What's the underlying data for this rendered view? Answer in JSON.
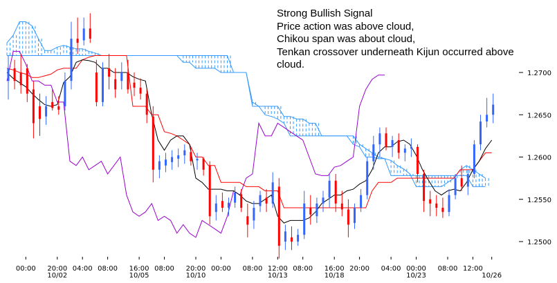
{
  "chart_data": {
    "type": "candlestick",
    "title": "",
    "xlabel": "",
    "ylabel": "",
    "ylim": [
      1.2478,
      1.2775
    ],
    "grid": false,
    "legend": "none",
    "annotation": [
      "Strong Bullish Signal",
      "Price action was above cloud,",
      "Chikou span was about cloud,",
      "Tenkan crossover underneath Kijun occurred above",
      "cloud."
    ],
    "y_ticks": [
      {
        "value": 1.27,
        "label": "1.2700"
      },
      {
        "value": 1.265,
        "label": "1.2650"
      },
      {
        "value": 1.26,
        "label": "1.2600"
      },
      {
        "value": 1.255,
        "label": "1.2550"
      },
      {
        "value": 1.25,
        "label": "1.2500"
      }
    ],
    "x_ticks": [
      {
        "i": 3,
        "time": "00:00",
        "date": ""
      },
      {
        "i": 8,
        "time": "20:00",
        "date": "10/02"
      },
      {
        "i": 12,
        "time": "04:00",
        "date": ""
      },
      {
        "i": 16,
        "time": "08:00",
        "date": ""
      },
      {
        "i": 21,
        "time": "16:00",
        "date": "10/05"
      },
      {
        "i": 25,
        "time": "08:00",
        "date": ""
      },
      {
        "i": 30,
        "time": "20:00",
        "date": "10/10"
      },
      {
        "i": 34,
        "time": "00:00",
        "date": ""
      },
      {
        "i": 39,
        "time": "08:00",
        "date": ""
      },
      {
        "i": 43,
        "time": "12:00",
        "date": "10/13"
      },
      {
        "i": 47,
        "time": "08:00",
        "date": ""
      },
      {
        "i": 52,
        "time": "16:00",
        "date": "10/18"
      },
      {
        "i": 56,
        "time": "20:00",
        "date": ""
      },
      {
        "i": 61,
        "time": "04:00",
        "date": ""
      },
      {
        "i": 65,
        "time": "00:00",
        "date": "10/23"
      },
      {
        "i": 70,
        "time": "08:00",
        "date": ""
      },
      {
        "i": 74,
        "time": "12:00",
        "date": ""
      },
      {
        "i": 77,
        "time": "",
        "date": "10/26"
      }
    ],
    "candles": [
      {
        "o": 1.269,
        "h": 1.272,
        "l": 1.2668,
        "c": 1.2705
      },
      {
        "o": 1.2705,
        "h": 1.2715,
        "l": 1.268,
        "c": 1.269
      },
      {
        "o": 1.27,
        "h": 1.2722,
        "l": 1.2675,
        "c": 1.2685
      },
      {
        "o": 1.2705,
        "h": 1.271,
        "l": 1.2665,
        "c": 1.2675
      },
      {
        "o": 1.268,
        "h": 1.269,
        "l": 1.2622,
        "c": 1.264
      },
      {
        "o": 1.266,
        "h": 1.2675,
        "l": 1.2625,
        "c": 1.2645
      },
      {
        "o": 1.2648,
        "h": 1.2672,
        "l": 1.2638,
        "c": 1.266
      },
      {
        "o": 1.2665,
        "h": 1.268,
        "l": 1.2655,
        "c": 1.2658
      },
      {
        "o": 1.266,
        "h": 1.2672,
        "l": 1.265,
        "c": 1.2656
      },
      {
        "o": 1.266,
        "h": 1.27,
        "l": 1.2655,
        "c": 1.269
      },
      {
        "o": 1.269,
        "h": 1.276,
        "l": 1.268,
        "c": 1.274
      },
      {
        "o": 1.274,
        "h": 1.2765,
        "l": 1.2722,
        "c": 1.2735
      },
      {
        "o": 1.2738,
        "h": 1.2765,
        "l": 1.2732,
        "c": 1.2752
      },
      {
        "o": 1.2752,
        "h": 1.277,
        "l": 1.2735,
        "c": 1.274
      },
      {
        "o": 1.27,
        "h": 1.2715,
        "l": 1.266,
        "c": 1.2665
      },
      {
        "o": 1.2665,
        "h": 1.2712,
        "l": 1.266,
        "c": 1.2705
      },
      {
        "o": 1.2705,
        "h": 1.2722,
        "l": 1.268,
        "c": 1.2695
      },
      {
        "o": 1.2692,
        "h": 1.2705,
        "l": 1.267,
        "c": 1.268
      },
      {
        "o": 1.269,
        "h": 1.2712,
        "l": 1.268,
        "c": 1.27
      },
      {
        "o": 1.27,
        "h": 1.2715,
        "l": 1.2675,
        "c": 1.268
      },
      {
        "o": 1.2688,
        "h": 1.27,
        "l": 1.2672,
        "c": 1.2682
      },
      {
        "o": 1.2682,
        "h": 1.2693,
        "l": 1.2668,
        "c": 1.2675
      },
      {
        "o": 1.2675,
        "h": 1.268,
        "l": 1.264,
        "c": 1.265
      },
      {
        "o": 1.2648,
        "h": 1.266,
        "l": 1.257,
        "c": 1.2585
      },
      {
        "o": 1.2585,
        "h": 1.2602,
        "l": 1.2575,
        "c": 1.2595
      },
      {
        "o": 1.259,
        "h": 1.2605,
        "l": 1.2582,
        "c": 1.2597
      },
      {
        "o": 1.2594,
        "h": 1.2608,
        "l": 1.2585,
        "c": 1.26
      },
      {
        "o": 1.2598,
        "h": 1.261,
        "l": 1.2588,
        "c": 1.2602
      },
      {
        "o": 1.2602,
        "h": 1.2615,
        "l": 1.2592,
        "c": 1.2608
      },
      {
        "o": 1.2606,
        "h": 1.2612,
        "l": 1.259,
        "c": 1.2595
      },
      {
        "o": 1.2596,
        "h": 1.2605,
        "l": 1.2585,
        "c": 1.2598
      },
      {
        "o": 1.2598,
        "h": 1.26,
        "l": 1.2578,
        "c": 1.2585
      },
      {
        "o": 1.259,
        "h": 1.2595,
        "l": 1.252,
        "c": 1.253
      },
      {
        "o": 1.2535,
        "h": 1.2555,
        "l": 1.2525,
        "c": 1.2545
      },
      {
        "o": 1.2548,
        "h": 1.2558,
        "l": 1.2535,
        "c": 1.254
      },
      {
        "o": 1.254,
        "h": 1.2552,
        "l": 1.253,
        "c": 1.2546
      },
      {
        "o": 1.2546,
        "h": 1.2565,
        "l": 1.254,
        "c": 1.2558
      },
      {
        "o": 1.2556,
        "h": 1.2562,
        "l": 1.2535,
        "c": 1.254
      },
      {
        "o": 1.253,
        "h": 1.2545,
        "l": 1.2505,
        "c": 1.252
      },
      {
        "o": 1.2525,
        "h": 1.2548,
        "l": 1.2515,
        "c": 1.254
      },
      {
        "o": 1.2542,
        "h": 1.256,
        "l": 1.2535,
        "c": 1.2555
      },
      {
        "o": 1.2552,
        "h": 1.2562,
        "l": 1.2535,
        "c": 1.2545
      },
      {
        "o": 1.2545,
        "h": 1.2582,
        "l": 1.254,
        "c": 1.257
      },
      {
        "o": 1.2565,
        "h": 1.2575,
        "l": 1.248,
        "c": 1.2495
      },
      {
        "o": 1.25,
        "h": 1.252,
        "l": 1.249,
        "c": 1.2512
      },
      {
        "o": 1.2505,
        "h": 1.2518,
        "l": 1.249,
        "c": 1.25
      },
      {
        "o": 1.25,
        "h": 1.2515,
        "l": 1.2495,
        "c": 1.2508
      },
      {
        "o": 1.2508,
        "h": 1.256,
        "l": 1.2503,
        "c": 1.2545
      },
      {
        "o": 1.254,
        "h": 1.2555,
        "l": 1.252,
        "c": 1.2532
      },
      {
        "o": 1.253,
        "h": 1.2552,
        "l": 1.2522,
        "c": 1.2545
      },
      {
        "o": 1.2545,
        "h": 1.256,
        "l": 1.2535,
        "c": 1.2552
      },
      {
        "o": 1.2552,
        "h": 1.258,
        "l": 1.254,
        "c": 1.2572
      },
      {
        "o": 1.2572,
        "h": 1.258,
        "l": 1.2535,
        "c": 1.2545
      },
      {
        "o": 1.2545,
        "h": 1.256,
        "l": 1.253,
        "c": 1.2538
      },
      {
        "o": 1.2538,
        "h": 1.255,
        "l": 1.2505,
        "c": 1.252
      },
      {
        "o": 1.2522,
        "h": 1.2545,
        "l": 1.2515,
        "c": 1.254
      },
      {
        "o": 1.254,
        "h": 1.2562,
        "l": 1.2535,
        "c": 1.2555
      },
      {
        "o": 1.2555,
        "h": 1.26,
        "l": 1.255,
        "c": 1.2595
      },
      {
        "o": 1.2595,
        "h": 1.2625,
        "l": 1.2585,
        "c": 1.2615
      },
      {
        "o": 1.2615,
        "h": 1.2635,
        "l": 1.26,
        "c": 1.2628
      },
      {
        "o": 1.2628,
        "h": 1.2635,
        "l": 1.2608,
        "c": 1.2612
      },
      {
        "o": 1.2612,
        "h": 1.2625,
        "l": 1.26,
        "c": 1.262
      },
      {
        "o": 1.262,
        "h": 1.2628,
        "l": 1.2598,
        "c": 1.2605
      },
      {
        "o": 1.2605,
        "h": 1.2615,
        "l": 1.2595,
        "c": 1.261
      },
      {
        "o": 1.261,
        "h": 1.2622,
        "l": 1.26,
        "c": 1.2612
      },
      {
        "o": 1.2612,
        "h": 1.2615,
        "l": 1.257,
        "c": 1.258
      },
      {
        "o": 1.258,
        "h": 1.2585,
        "l": 1.2535,
        "c": 1.2548
      },
      {
        "o": 1.255,
        "h": 1.256,
        "l": 1.253,
        "c": 1.2545
      },
      {
        "o": 1.2545,
        "h": 1.2555,
        "l": 1.253,
        "c": 1.254
      },
      {
        "o": 1.254,
        "h": 1.2552,
        "l": 1.2528,
        "c": 1.2535
      },
      {
        "o": 1.2535,
        "h": 1.2562,
        "l": 1.253,
        "c": 1.2555
      },
      {
        "o": 1.2555,
        "h": 1.258,
        "l": 1.255,
        "c": 1.2575
      },
      {
        "o": 1.2575,
        "h": 1.259,
        "l": 1.256,
        "c": 1.2565
      },
      {
        "o": 1.2565,
        "h": 1.2585,
        "l": 1.2555,
        "c": 1.258
      },
      {
        "o": 1.258,
        "h": 1.262,
        "l": 1.2575,
        "c": 1.2615
      },
      {
        "o": 1.2615,
        "h": 1.265,
        "l": 1.2608,
        "c": 1.2642
      },
      {
        "o": 1.2642,
        "h": 1.267,
        "l": 1.2635,
        "c": 1.265
      },
      {
        "o": 1.265,
        "h": 1.2675,
        "l": 1.264,
        "c": 1.2662
      }
    ],
    "series": [
      {
        "role": "tenkan",
        "color": "#000000",
        "values": [
          1.27,
          1.2693,
          1.2688,
          1.2683,
          1.2675,
          1.2668,
          1.2662,
          1.266,
          1.2662,
          1.2688,
          1.2695,
          1.2712,
          1.2715,
          1.2714,
          1.2712,
          1.2705,
          1.2705,
          1.27,
          1.27,
          1.27,
          1.2695,
          1.2692,
          1.269,
          1.265,
          1.262,
          1.2608,
          1.262,
          1.2625,
          1.2625,
          1.2615,
          1.2575,
          1.257,
          1.2562,
          1.2562,
          1.2562,
          1.256,
          1.256,
          1.2555,
          1.2548,
          1.2545,
          1.2545,
          1.255,
          1.2555,
          1.253,
          1.2522,
          1.2525,
          1.2525,
          1.2525,
          1.2528,
          1.2535,
          1.2545,
          1.255,
          1.2555,
          1.2555,
          1.256,
          1.2562,
          1.2568,
          1.2572,
          1.2585,
          1.2605,
          1.2612,
          1.2612,
          1.2618,
          1.262,
          1.2615,
          1.2602,
          1.2585,
          1.2572,
          1.256,
          1.2555,
          1.256,
          1.2562,
          1.256,
          1.257,
          1.2585,
          1.2595,
          1.261,
          1.262
        ]
      },
      {
        "role": "kijun",
        "color": "#ff0000",
        "values": [
          1.2705,
          1.2703,
          1.27,
          1.2698,
          1.2694,
          1.2694,
          1.2696,
          1.2698,
          1.2703,
          1.2705,
          1.2705,
          1.2705,
          1.2715,
          1.2718,
          1.272,
          1.272,
          1.272,
          1.272,
          1.272,
          1.272,
          1.266,
          1.266,
          1.266,
          1.265,
          1.265,
          1.263,
          1.2628,
          1.2625,
          1.262,
          1.2615,
          1.26,
          1.26,
          1.259,
          1.259,
          1.257,
          1.257,
          1.257,
          1.257,
          1.2565,
          1.2565,
          1.2565,
          1.256,
          1.256,
          1.256,
          1.254,
          1.254,
          1.254,
          1.254,
          1.254,
          1.254,
          1.254,
          1.254,
          1.254,
          1.254,
          1.254,
          1.254,
          1.254,
          1.254,
          1.256,
          1.257,
          1.257,
          1.257,
          1.2575,
          1.2575,
          1.2575,
          1.2575,
          1.2575,
          1.2575,
          1.2575,
          1.2575,
          1.2575,
          1.2575,
          1.2585,
          1.2585,
          1.2585,
          1.2595,
          1.2605,
          1.2605
        ]
      },
      {
        "role": "chikou",
        "color": "#9900cc",
        "values": [
          1.269,
          1.2725,
          1.2725,
          1.271,
          1.269,
          1.269,
          1.2685,
          1.2685,
          1.2665,
          1.2665,
          1.2595,
          1.259,
          1.26,
          1.2585,
          1.259,
          1.2595,
          1.258,
          1.259,
          1.26,
          1.2555,
          1.2535,
          1.253,
          1.2535,
          1.2545,
          1.2525,
          1.253,
          1.2525,
          1.251,
          1.252,
          1.251,
          1.2505,
          1.2525,
          1.252,
          1.2515,
          1.251,
          1.253,
          1.256,
          1.2555,
          1.2575,
          1.258,
          1.264,
          1.2625,
          1.2625,
          1.264,
          1.2635,
          1.263,
          1.2625,
          1.262,
          1.26,
          1.258,
          1.2578,
          1.2578,
          1.2588,
          1.259,
          1.2595,
          1.26,
          1.266,
          1.268,
          1.2692,
          1.2697,
          1.2697
        ]
      },
      {
        "role": "senkou_a",
        "color": "#3399ff",
        "values": [
          1.2735,
          1.2744,
          1.276,
          1.276,
          1.2755,
          1.274,
          1.2726,
          1.2726,
          1.273,
          1.2732,
          1.273,
          1.2728,
          1.2728,
          1.2725,
          1.2723,
          1.272,
          1.272,
          1.272,
          1.272,
          1.272,
          1.272,
          1.272,
          1.272,
          1.272,
          1.272,
          1.272,
          1.272,
          1.272,
          1.2712,
          1.2712,
          1.2705,
          1.2705,
          1.2705,
          1.2705,
          1.27,
          1.27,
          1.27,
          1.27,
          1.27,
          1.266,
          1.266,
          1.266,
          1.266,
          1.266,
          1.2648,
          1.2648,
          1.2645,
          1.2645,
          1.264,
          1.264,
          1.2625,
          1.2625,
          1.2625,
          1.2625,
          1.2625,
          1.2625,
          1.2615,
          1.261,
          1.2605,
          1.26,
          1.2598,
          1.2596,
          1.259,
          1.2586,
          1.258,
          1.2565,
          1.2565,
          1.2565,
          1.2565,
          1.2565,
          1.257,
          1.2575,
          1.2585,
          1.259,
          1.2585,
          1.258,
          1.2575
        ]
      },
      {
        "role": "senkou_b",
        "color": "#3399ff",
        "values": [
          1.272,
          1.272,
          1.272,
          1.272,
          1.272,
          1.272,
          1.272,
          1.272,
          1.272,
          1.272,
          1.272,
          1.272,
          1.272,
          1.272,
          1.272,
          1.272,
          1.272,
          1.272,
          1.272,
          1.272,
          1.272,
          1.272,
          1.272,
          1.272,
          1.272,
          1.272,
          1.272,
          1.272,
          1.272,
          1.272,
          1.272,
          1.272,
          1.272,
          1.272,
          1.272,
          1.272,
          1.27,
          1.27,
          1.27,
          1.2665,
          1.266,
          1.265,
          1.2648,
          1.2645,
          1.264,
          1.2625,
          1.2625,
          1.2625,
          1.2625,
          1.2625,
          1.2625,
          1.2625,
          1.2625,
          1.2625,
          1.2625,
          1.2615,
          1.2612,
          1.26,
          1.26,
          1.2598,
          1.2598,
          1.2578,
          1.2578,
          1.2578,
          1.2578,
          1.2578,
          1.2578,
          1.2578,
          1.2578,
          1.2578,
          1.2578,
          1.2578,
          1.2578,
          1.2578,
          1.2565,
          1.2565,
          1.2565
        ]
      }
    ]
  }
}
